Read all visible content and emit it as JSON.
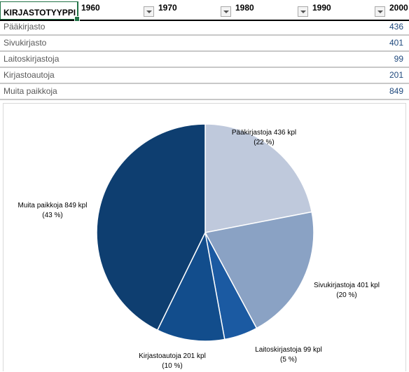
{
  "header": {
    "first_col": "KIRJASTOTYYPPI",
    "years": [
      "1960",
      "1970",
      "1980",
      "1990",
      "2000"
    ]
  },
  "rows": [
    {
      "label": "Pääkirjasto",
      "value": "436"
    },
    {
      "label": "Sivukirjasto",
      "value": "401"
    },
    {
      "label": "Laitoskirjastoja",
      "value": "99"
    },
    {
      "label": "Kirjastoautoja",
      "value": "201"
    },
    {
      "label": "Muita paikkoja",
      "value": "849"
    }
  ],
  "chart_data": {
    "type": "pie",
    "title": "",
    "slices": [
      {
        "name": "Pääkirjastoja",
        "value": 436,
        "label": "Pääkirjastoja 436 kpl",
        "pct": "(22 %)",
        "color": "#bfc9dc"
      },
      {
        "name": "Sivukirjastoja",
        "value": 401,
        "label": "Sivukirjastoja 401 kpl",
        "pct": "(20 %)",
        "color": "#8aa2c4"
      },
      {
        "name": "Laitoskirjastoja",
        "value": 99,
        "label": "Laitoskirjastoja  99 kpl",
        "pct": "(5 %)",
        "color": "#1b5aa2"
      },
      {
        "name": "Kirjastoautoja",
        "value": 201,
        "label": "Kirjastoautoja 201 kpl",
        "pct": "(10 %)",
        "color": "#124d8c"
      },
      {
        "name": "Muita paikkoja",
        "value": 849,
        "label": "Muita paikkoja 849 kpl",
        "pct": "(43 %)",
        "color": "#0e3e70"
      }
    ]
  }
}
